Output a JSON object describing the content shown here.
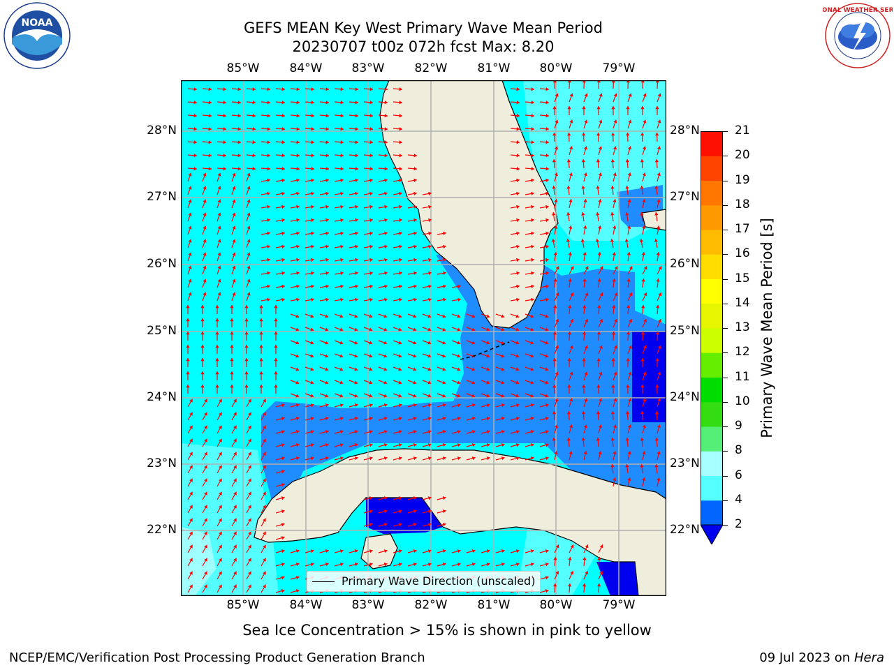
{
  "title": {
    "line1": "GEFS MEAN Key West Primary Wave Mean Period",
    "line2": "20230707 t00z 072h fcst   Max: 8.20"
  },
  "logos": {
    "noaa_text": "NOAA",
    "noaa_ring": "NATIONAL OCEANIC AND ATMOSPHERIC ADMINISTRATION · U.S. DEPARTMENT OF COMMERCE",
    "nws_ring": "NATIONAL WEATHER SERVICE"
  },
  "map": {
    "lon_labels": [
      "85°W",
      "84°W",
      "83°W",
      "82°W",
      "81°W",
      "80°W",
      "79°W"
    ],
    "lat_labels": [
      "28°N",
      "27°N",
      "26°N",
      "25°N",
      "24°N",
      "23°N",
      "22°N"
    ],
    "legend": "Primary Wave Direction (unscaled)",
    "colors": {
      "ocean_low": "#00ffff",
      "ocean_mid": "#55ffff",
      "ocean_light": "#a0ffff",
      "ocean_blue": "#1f8cff",
      "ocean_dark": "#0000ee",
      "land": "#efeedd",
      "arrow": "#ff0000",
      "grid": "#b0b0b0"
    }
  },
  "colorbar": {
    "title": "Primary Wave Mean Period [s]",
    "levels": [
      "2",
      "4",
      "6",
      "8",
      "9",
      "10",
      "11",
      "12",
      "13",
      "14",
      "15",
      "16",
      "17",
      "18",
      "19",
      "20",
      "21"
    ],
    "colors": [
      "#1f7fff",
      "#00e5ff",
      "#55ffff",
      "#a8ffff",
      "#55ee77",
      "#33dd11",
      "#00dd00",
      "#66ee00",
      "#ccff00",
      "#e6f600",
      "#ffff00",
      "#ffdd00",
      "#ffbb00",
      "#ff9900",
      "#ff7700",
      "#ff4400",
      "#ff1100"
    ]
  },
  "subtitle": "Sea Ice Concentration > 15% is shown in pink to yellow",
  "footer": {
    "left": "NCEP/EMC/Verification Post Processing Product Generation Branch",
    "right_date": "09 Jul 2023 on ",
    "right_machine": "Hera"
  }
}
